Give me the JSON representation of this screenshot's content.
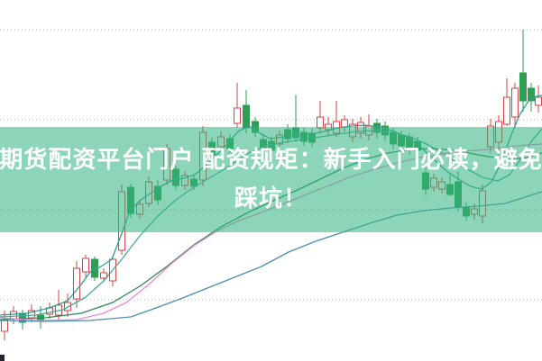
{
  "banner": {
    "line1": "期货配资平台门户 配资规矩：新手入门必读，避免",
    "line2": "踩坑！",
    "bg_color": "rgba(52,180,128,0.56)",
    "text_color": "#ffffff"
  },
  "chart_data": {
    "type": "candlestick",
    "title": "期货配资平台门户 配资规矩：新手入门必读，避免踩坑！",
    "axes": {
      "x_tick_labels_visible": false,
      "y_tick_labels_visible": false,
      "ylim": [
        4.0,
        43.3
      ]
    },
    "grid": {
      "horizontal_price_lines": [
        10,
        20,
        30,
        40
      ],
      "style": "dotted",
      "color": "#b4b4b4"
    },
    "up_candle": {
      "stroke": "#cf4444",
      "fill": "#ffffff"
    },
    "down_candle": {
      "stroke": "#2e9e52",
      "fill": "#2e9e52"
    },
    "candles": {
      "columns": [
        "x",
        "open",
        "high",
        "low",
        "close"
      ],
      "rows": [
        [
          5,
          6.5,
          8.8,
          5.5,
          7.8
        ],
        [
          15,
          7.9,
          9.3,
          7.3,
          8.7
        ],
        [
          25,
          8.5,
          8.9,
          6.7,
          7.5
        ],
        [
          35,
          8.0,
          9.5,
          7.5,
          8.8
        ],
        [
          45,
          8.3,
          9.3,
          6.8,
          7.7
        ],
        [
          55,
          8.4,
          9.7,
          7.9,
          9.1
        ],
        [
          65,
          8.3,
          11.1,
          7.8,
          9.4
        ],
        [
          75,
          8.8,
          10.7,
          8.1,
          9.7
        ],
        [
          85,
          10.1,
          14.3,
          9.1,
          13.5
        ],
        [
          95,
          13.1,
          15.0,
          12.5,
          14.6
        ],
        [
          105,
          14.5,
          14.8,
          12.1,
          12.5
        ],
        [
          115,
          12.4,
          13.5,
          12.0,
          13.0
        ],
        [
          125,
          12.1,
          14.9,
          11.5,
          14.5
        ],
        [
          135,
          15.5,
          22.8,
          15.0,
          22.0
        ],
        [
          145,
          22.5,
          22.9,
          19.1,
          19.6
        ],
        [
          155,
          19.5,
          21.1,
          19.0,
          20.6
        ],
        [
          165,
          20.7,
          23.7,
          20.3,
          23.1
        ],
        [
          175,
          22.6,
          23.3,
          20.5,
          21.1
        ],
        [
          185,
          23.3,
          27.3,
          22.8,
          26.8
        ],
        [
          195,
          24.5,
          24.9,
          22.2,
          22.7
        ],
        [
          205,
          22.7,
          24.3,
          22.2,
          23.8
        ],
        [
          215,
          23.4,
          23.8,
          22.2,
          22.6
        ],
        [
          225,
          23.3,
          29.3,
          22.6,
          28.6
        ],
        [
          235,
          27.5,
          28.0,
          25.6,
          25.9
        ],
        [
          245,
          27.0,
          28.7,
          26.5,
          28.1
        ],
        [
          255,
          27.9,
          28.4,
          26.3,
          26.8
        ],
        [
          263,
          29.6,
          34.1,
          29.1,
          31.3
        ],
        [
          273,
          31.6,
          33.3,
          28.5,
          29.1
        ],
        [
          283,
          29.8,
          30.3,
          28.1,
          28.6
        ],
        [
          292,
          27.8,
          28.3,
          26.3,
          26.8
        ],
        [
          301,
          27.6,
          28.1,
          25.9,
          26.6
        ],
        [
          310,
          27.3,
          28.8,
          26.8,
          28.3
        ],
        [
          319,
          28.9,
          29.5,
          27.4,
          27.9
        ],
        [
          328,
          29.1,
          32.8,
          27.5,
          28.0
        ],
        [
          337,
          28.6,
          29.1,
          27.1,
          27.6
        ],
        [
          346,
          28.5,
          29.0,
          27.0,
          27.5
        ],
        [
          355,
          29.1,
          32.1,
          28.5,
          30.3
        ],
        [
          364,
          28.9,
          30.3,
          28.3,
          29.5
        ],
        [
          373,
          28.5,
          32.1,
          28.1,
          29.8
        ],
        [
          382,
          29.2,
          30.5,
          28.7,
          30.0
        ],
        [
          391,
          28.1,
          30.1,
          27.5,
          29.5
        ],
        [
          400,
          28.5,
          30.3,
          27.9,
          29.7
        ],
        [
          409,
          28.3,
          30.6,
          27.7,
          29.3
        ],
        [
          418,
          29.6,
          30.1,
          27.9,
          28.6
        ],
        [
          427,
          29.3,
          29.8,
          27.6,
          28.3
        ],
        [
          436,
          28.5,
          29.1,
          26.7,
          27.3
        ],
        [
          445,
          28.3,
          28.8,
          26.4,
          27.1
        ],
        [
          454,
          28.1,
          28.6,
          26.1,
          26.8
        ],
        [
          463,
          27.6,
          28.1,
          25.9,
          26.6
        ],
        [
          472,
          24.1,
          25.0,
          21.6,
          22.3
        ],
        [
          481,
          22.5,
          24.0,
          22.0,
          23.5
        ],
        [
          490,
          22.3,
          23.6,
          21.8,
          23.1
        ],
        [
          499,
          22.8,
          23.9,
          21.5,
          21.7
        ],
        [
          508,
          23.1,
          24.3,
          19.8,
          20.3
        ],
        [
          517,
          20.3,
          20.8,
          18.8,
          19.3
        ],
        [
          526,
          19.5,
          20.7,
          18.9,
          20.1
        ],
        [
          535,
          19.3,
          22.8,
          18.5,
          22.1
        ],
        [
          544,
          27.0,
          30.1,
          26.3,
          29.3
        ],
        [
          553,
          27.5,
          30.5,
          25.8,
          29.8
        ],
        [
          562,
          29.5,
          34.6,
          29.3,
          32.5
        ],
        [
          571,
          30.3,
          34.1,
          29.1,
          33.5
        ],
        [
          580,
          35.2,
          40.0,
          30.9,
          32.1
        ],
        [
          589,
          33.5,
          34.1,
          30.9,
          32.1
        ],
        [
          597,
          31.6,
          33.8,
          30.8,
          32.5
        ]
      ]
    },
    "ma_lines": [
      {
        "name": "ma-fast-teal",
        "color": "#2f9f92",
        "points": [
          [
            0,
            8.3
          ],
          [
            30,
            8.5
          ],
          [
            55,
            9.1
          ],
          [
            75,
            9.9
          ],
          [
            90,
            11.7
          ],
          [
            100,
            13.1
          ],
          [
            112,
            13.7
          ],
          [
            124,
            14.5
          ],
          [
            134,
            17.1
          ],
          [
            144,
            19.9
          ],
          [
            156,
            21.1
          ],
          [
            168,
            21.9
          ],
          [
            180,
            22.7
          ],
          [
            192,
            23.3
          ],
          [
            204,
            23.5
          ],
          [
            216,
            23.9
          ],
          [
            228,
            24.9
          ],
          [
            240,
            26.1
          ],
          [
            252,
            27.3
          ],
          [
            264,
            28.7
          ],
          [
            276,
            29.3
          ],
          [
            288,
            28.5
          ],
          [
            300,
            27.9
          ],
          [
            315,
            28.1
          ],
          [
            330,
            28.3
          ],
          [
            345,
            28.4
          ],
          [
            360,
            28.7
          ],
          [
            375,
            29.1
          ],
          [
            390,
            29.3
          ],
          [
            405,
            29.4
          ],
          [
            420,
            29.2
          ],
          [
            435,
            28.8
          ],
          [
            450,
            28.1
          ],
          [
            465,
            27.1
          ],
          [
            480,
            25.7
          ],
          [
            495,
            24.3
          ],
          [
            510,
            23.3
          ],
          [
            522,
            22.6
          ],
          [
            534,
            22.3
          ],
          [
            545,
            23.1
          ],
          [
            556,
            25.3
          ],
          [
            566,
            28.1
          ],
          [
            576,
            30.5
          ],
          [
            586,
            32.1
          ],
          [
            595,
            32.6
          ],
          [
            601,
            32.7
          ]
        ]
      },
      {
        "name": "ma-medium-teal",
        "color": "#43ab9c",
        "points": [
          [
            0,
            8.1
          ],
          [
            40,
            8.3
          ],
          [
            70,
            8.9
          ],
          [
            95,
            10.3
          ],
          [
            115,
            12.1
          ],
          [
            135,
            14.5
          ],
          [
            155,
            17.1
          ],
          [
            175,
            19.3
          ],
          [
            195,
            21.1
          ],
          [
            215,
            22.5
          ],
          [
            235,
            23.7
          ],
          [
            255,
            24.9
          ],
          [
            275,
            26.3
          ],
          [
            295,
            27.1
          ],
          [
            315,
            27.5
          ],
          [
            335,
            27.8
          ],
          [
            355,
            28.1
          ],
          [
            375,
            28.4
          ],
          [
            395,
            28.7
          ],
          [
            415,
            28.8
          ],
          [
            435,
            28.6
          ],
          [
            455,
            28.1
          ],
          [
            475,
            27.2
          ],
          [
            495,
            26.0
          ],
          [
            515,
            24.7
          ],
          [
            535,
            23.6
          ],
          [
            552,
            23.2
          ],
          [
            565,
            23.9
          ],
          [
            578,
            25.7
          ],
          [
            590,
            27.7
          ],
          [
            601,
            29.0
          ]
        ]
      },
      {
        "name": "ma-slow-green",
        "color": "#2e8857",
        "points": [
          [
            0,
            7.8
          ],
          [
            50,
            8.0
          ],
          [
            90,
            8.5
          ],
          [
            125,
            9.7
          ],
          [
            155,
            11.5
          ],
          [
            185,
            13.7
          ],
          [
            215,
            16.1
          ],
          [
            245,
            18.1
          ],
          [
            275,
            19.7
          ],
          [
            305,
            21.1
          ],
          [
            330,
            22.2
          ],
          [
            355,
            23.4
          ],
          [
            380,
            24.6
          ],
          [
            405,
            25.6
          ],
          [
            430,
            26.3
          ],
          [
            455,
            26.7
          ],
          [
            480,
            26.8
          ],
          [
            505,
            26.6
          ],
          [
            530,
            26.1
          ],
          [
            555,
            25.7
          ],
          [
            580,
            25.7
          ],
          [
            601,
            26.3
          ]
        ]
      },
      {
        "name": "ma-magenta",
        "color": "#e88ad6",
        "points": [
          [
            0,
            8.0
          ],
          [
            45,
            7.7
          ],
          [
            85,
            7.8
          ],
          [
            115,
            8.5
          ],
          [
            140,
            9.7
          ],
          [
            165,
            11.7
          ],
          [
            190,
            14.0
          ],
          [
            215,
            16.0
          ],
          [
            240,
            17.6
          ],
          [
            265,
            18.8
          ],
          [
            290,
            19.7
          ],
          [
            315,
            20.7
          ],
          [
            340,
            21.7
          ],
          [
            365,
            22.7
          ],
          [
            390,
            23.7
          ],
          [
            415,
            24.5
          ],
          [
            440,
            25.2
          ],
          [
            465,
            25.8
          ],
          [
            490,
            26.2
          ],
          [
            515,
            26.5
          ],
          [
            540,
            26.7
          ],
          [
            565,
            27.0
          ],
          [
            585,
            27.2
          ],
          [
            601,
            27.3
          ]
        ]
      },
      {
        "name": "ma-slowest-blue",
        "color": "#4b8fae",
        "points": [
          [
            0,
            7.7
          ],
          [
            50,
            7.6
          ],
          [
            100,
            7.7
          ],
          [
            145,
            8.1
          ],
          [
            165,
            8.8
          ],
          [
            200,
            10.1
          ],
          [
            230,
            11.3
          ],
          [
            260,
            12.5
          ],
          [
            290,
            13.7
          ],
          [
            320,
            15.3
          ],
          [
            350,
            16.5
          ],
          [
            380,
            17.5
          ],
          [
            410,
            18.5
          ],
          [
            440,
            19.4
          ],
          [
            470,
            19.9
          ],
          [
            500,
            20.2
          ],
          [
            530,
            20.4
          ],
          [
            560,
            20.7
          ],
          [
            601,
            22.0
          ]
        ]
      }
    ]
  }
}
